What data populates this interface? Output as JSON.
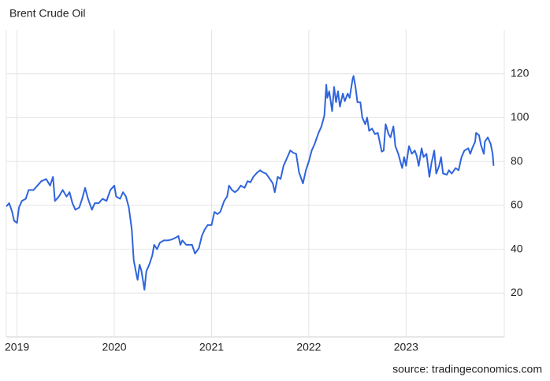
{
  "chart_data": {
    "type": "line",
    "title": "Brent Crude Oil",
    "source": "source: tradingeconomics.com",
    "x": [
      2018.89,
      2018.92,
      2018.95,
      2018.97,
      2019.0,
      2019.02,
      2019.05,
      2019.09,
      2019.12,
      2019.17,
      2019.21,
      2019.25,
      2019.3,
      2019.34,
      2019.37,
      2019.39,
      2019.43,
      2019.47,
      2019.51,
      2019.54,
      2019.57,
      2019.6,
      2019.64,
      2019.67,
      2019.7,
      2019.73,
      2019.77,
      2019.8,
      2019.84,
      2019.88,
      2019.92,
      2019.96,
      2020.0,
      2020.02,
      2020.06,
      2020.09,
      2020.12,
      2020.15,
      2020.18,
      2020.2,
      2020.23,
      2020.24,
      2020.26,
      2020.28,
      2020.31,
      2020.33,
      2020.36,
      2020.39,
      2020.41,
      2020.44,
      2020.47,
      2020.51,
      2020.55,
      2020.59,
      2020.62,
      2020.66,
      2020.68,
      2020.7,
      2020.74,
      2020.77,
      2020.8,
      2020.83,
      2020.87,
      2020.9,
      2020.93,
      2020.96,
      2021.0,
      2021.03,
      2021.06,
      2021.09,
      2021.13,
      2021.16,
      2021.18,
      2021.21,
      2021.24,
      2021.27,
      2021.3,
      2021.34,
      2021.37,
      2021.4,
      2021.43,
      2021.47,
      2021.5,
      2021.53,
      2021.56,
      2021.6,
      2021.63,
      2021.65,
      2021.68,
      2021.71,
      2021.74,
      2021.77,
      2021.81,
      2021.84,
      2021.87,
      2021.9,
      2021.94,
      2021.97,
      2022.0,
      2022.03,
      2022.06,
      2022.1,
      2022.13,
      2022.16,
      2022.18,
      2022.19,
      2022.21,
      2022.24,
      2022.26,
      2022.28,
      2022.3,
      2022.32,
      2022.35,
      2022.37,
      2022.4,
      2022.42,
      2022.45,
      2022.46,
      2022.48,
      2022.5,
      2022.53,
      2022.55,
      2022.58,
      2022.6,
      2022.62,
      2022.65,
      2022.68,
      2022.71,
      2022.75,
      2022.77,
      2022.79,
      2022.82,
      2022.84,
      2022.87,
      2022.89,
      2022.92,
      2022.96,
      2022.98,
      2023.0,
      2023.03,
      2023.06,
      2023.09,
      2023.11,
      2023.13,
      2023.16,
      2023.18,
      2023.21,
      2023.24,
      2023.26,
      2023.29,
      2023.31,
      2023.34,
      2023.36,
      2023.38,
      2023.42,
      2023.44,
      2023.47,
      2023.51,
      2023.54,
      2023.57,
      2023.6,
      2023.64,
      2023.66,
      2023.68,
      2023.71,
      2023.72,
      2023.75,
      2023.77,
      2023.8,
      2023.81,
      2023.84,
      2023.87,
      2023.89,
      2023.9
    ],
    "series": [
      {
        "name": "Brent Crude Oil",
        "color": "#2f64dc",
        "values": [
          59.5,
          61,
          57,
          53,
          52,
          59,
          62,
          63,
          67,
          67,
          69,
          71,
          72,
          69,
          73,
          62,
          64,
          67,
          64,
          66,
          61,
          58,
          59,
          63,
          68,
          63,
          58,
          61,
          61,
          63,
          62,
          67,
          69,
          64,
          63,
          66,
          64,
          59,
          49,
          35,
          28,
          26,
          33,
          30,
          21.5,
          30,
          33,
          37,
          42,
          40,
          43,
          44,
          44,
          44.4,
          45,
          46,
          42,
          44,
          42,
          42,
          42,
          38,
          40.5,
          46,
          49,
          51,
          51,
          57,
          56,
          57,
          62,
          64,
          69,
          67,
          66,
          67,
          69,
          68,
          71,
          70.5,
          73,
          75,
          76,
          75,
          74.5,
          72,
          70,
          66,
          73,
          72,
          78,
          81,
          85,
          84,
          83.5,
          75,
          70,
          76,
          80,
          85,
          88,
          93,
          96,
          101,
          115,
          109,
          112,
          103,
          114,
          107,
          112,
          105,
          111,
          107.5,
          111,
          109,
          117.5,
          119,
          114,
          107,
          107,
          100,
          97,
          100,
          94,
          95,
          92.5,
          93,
          84.5,
          85,
          97,
          92.5,
          91,
          96,
          87,
          83.5,
          77,
          82,
          78,
          87,
          83.5,
          85,
          82.5,
          78,
          86,
          82,
          83.5,
          73,
          79,
          85,
          74.5,
          78,
          82,
          74.5,
          74,
          76,
          74.5,
          77,
          76,
          82,
          85,
          86,
          83.5,
          86,
          89,
          93,
          92,
          87.5,
          83.5,
          89,
          91,
          88,
          83.5,
          78
        ]
      }
    ],
    "xlim": [
      2018.89,
      2024.01
    ],
    "xticks": [
      2019,
      2020,
      2021,
      2022,
      2023
    ],
    "ylim": [
      0,
      140
    ],
    "yticks": [
      20,
      40,
      60,
      80,
      100,
      120
    ],
    "grid": true
  }
}
